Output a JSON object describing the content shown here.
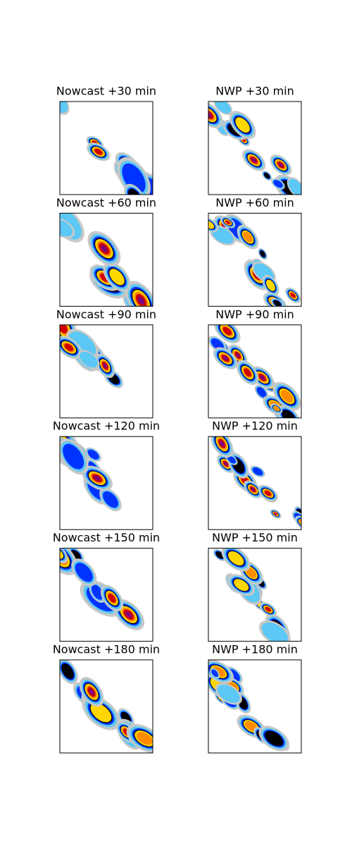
{
  "panels": [
    {
      "title": "Nowcast +30 min"
    },
    {
      "title": "NWP +30 min"
    },
    {
      "title": "Nowcast +60 min"
    },
    {
      "title": "NWP +60 min"
    },
    {
      "title": "Nowcast +90 min"
    },
    {
      "title": "NWP +90 min"
    },
    {
      "title": "Nowcast +120 min"
    },
    {
      "title": "NWP +120 min"
    },
    {
      "title": "Nowcast +150 min"
    },
    {
      "title": "NWP +150 min"
    },
    {
      "title": "Nowcast +180 min"
    },
    {
      "title": "NWP +180 min"
    }
  ]
}
